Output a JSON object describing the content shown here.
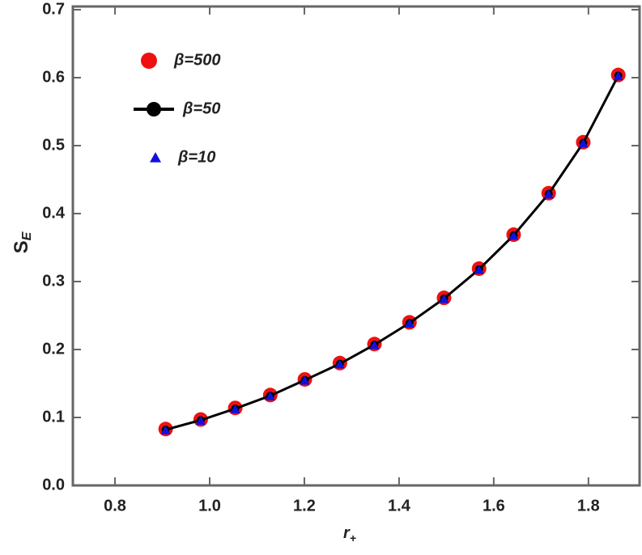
{
  "chart_data": {
    "type": "scatter",
    "xlabel": "r",
    "xlabel_sub": "+",
    "ylabel": "S",
    "ylabel_sub": "E",
    "x": [
      0.907,
      0.981,
      1.054,
      1.128,
      1.201,
      1.275,
      1.348,
      1.422,
      1.495,
      1.569,
      1.642,
      1.716,
      1.789,
      1.863
    ],
    "series": [
      {
        "name": "β=500",
        "color": "#ee1111",
        "marker": "circle",
        "line": false,
        "values": [
          0.083,
          0.097,
          0.114,
          0.133,
          0.156,
          0.18,
          0.208,
          0.24,
          0.276,
          0.319,
          0.369,
          0.43,
          0.505,
          0.604
        ]
      },
      {
        "name": "β=50",
        "color": "#000000",
        "marker": "circle",
        "line": true,
        "values": [
          0.082,
          0.096,
          0.113,
          0.132,
          0.155,
          0.179,
          0.207,
          0.239,
          0.275,
          0.318,
          0.368,
          0.429,
          0.504,
          0.603
        ]
      },
      {
        "name": "β=10",
        "color": "#1111dd",
        "marker": "triangle",
        "line": false,
        "values": [
          0.081,
          0.095,
          0.112,
          0.131,
          0.154,
          0.178,
          0.206,
          0.238,
          0.274,
          0.317,
          0.367,
          0.428,
          0.503,
          0.602
        ]
      }
    ],
    "xlim": [
      0.711,
      1.908
    ],
    "ylim": [
      0,
      0.7
    ],
    "xticks": [
      0.8,
      {
        "value": 1.0,
        "label": "1.0"
      },
      1.2,
      1.4,
      1.6,
      1.8
    ],
    "yticks": [
      {
        "value": 0,
        "label": "0.0"
      },
      0.1,
      0.2,
      0.3,
      0.4,
      0.5,
      0.6,
      0.7
    ],
    "legend": "upper-left"
  }
}
